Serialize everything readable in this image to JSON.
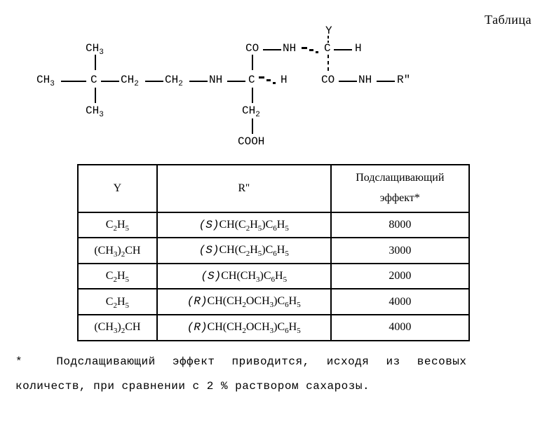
{
  "title": "Таблица",
  "structure": {
    "ch3_top": "CH₃",
    "ch3_left": "CH₃",
    "c_center": "C",
    "ch2_1": "CH₂",
    "ch2_2": "CH₂",
    "nh_1": "NH",
    "c_mid": "C",
    "h_mid": "H",
    "ch3_bot": "CH₃",
    "ch2_down": "CH₂",
    "cooh": "COOH",
    "co_top": "CO",
    "nh_top": "NH",
    "c_right": "C",
    "h_right": "H",
    "y": "Y",
    "co_right": "CO",
    "nh_right": "NH",
    "r": "R\""
  },
  "table": {
    "columns": [
      "Y",
      "R''",
      "Подслащивающий\nэффект*"
    ],
    "rows": [
      {
        "y": "C₂H₅",
        "r_prefix": "(S)",
        "r": "CH(C₂H₅)C₆H₅",
        "effect": "8000"
      },
      {
        "y": "(CH₃)₂CH",
        "r_prefix": "(S)",
        "r": "CH(C₂H₅)C₆H₅",
        "effect": "3000"
      },
      {
        "y": "C₂H₅",
        "r_prefix": "(S)",
        "r": "CH(CH₃)C₆H₅",
        "effect": "2000"
      },
      {
        "y": "C₂H₅",
        "r_prefix": "(R)",
        "r": "CH(CH₂OCH₃)C₆H₅",
        "effect": "4000"
      },
      {
        "y": "(CH₃)₂CH",
        "r_prefix": "(R)",
        "r": "CH(CH₂OCH₃)C₆H₅",
        "effect": "4000"
      }
    ]
  },
  "footnote": {
    "line1_star": "*",
    "line1": "Подслащивающий  эффект  приводится,  исходя  из  весовых",
    "line2": "количеств, при сравнении с 2 % раствором сахарозы."
  }
}
